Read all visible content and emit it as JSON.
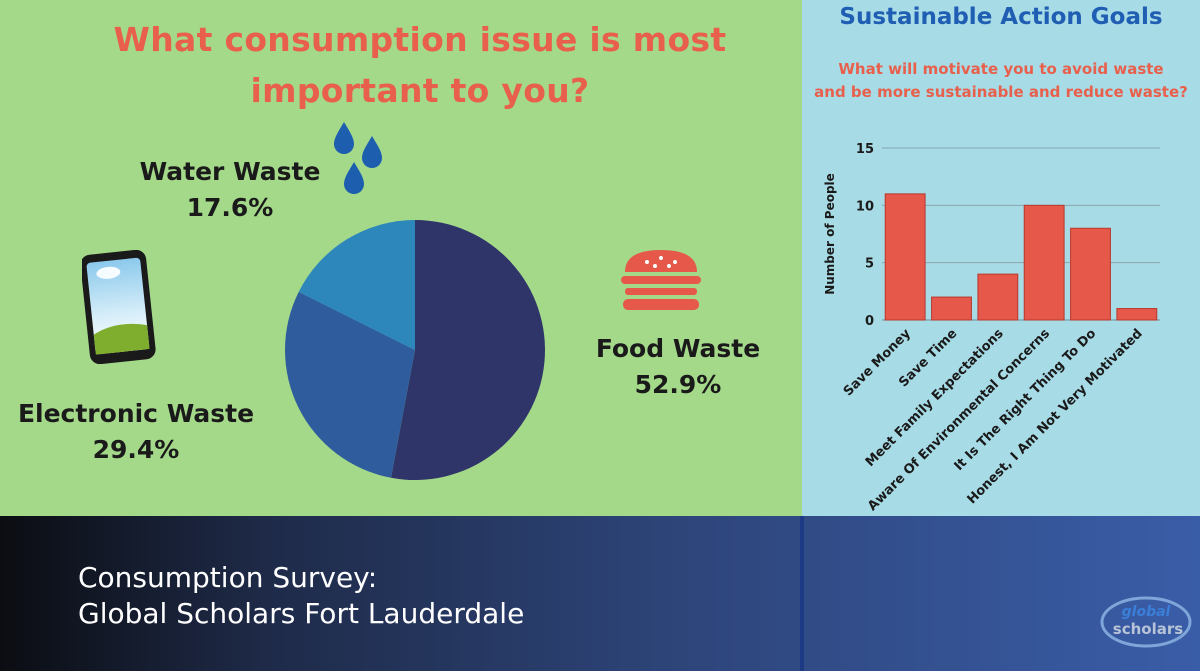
{
  "pie_section": {
    "title_line1": "What consumption issue is most",
    "title_line2": "important to you?"
  },
  "bar_section": {
    "heading": "Sustainable Action Goals",
    "question_line1": "What will motivate you to avoid waste",
    "question_line2": "and be more sustainable and reduce waste?"
  },
  "footer": {
    "title_line1": "Consumption  Survey:",
    "title_line2": "Global Scholars Fort Lauderdale",
    "logo_text_top": "global",
    "logo_text_bottom": "scholars"
  },
  "colors": {
    "food_waste": "#2f3469",
    "electronic_waste": "#2e5c9c",
    "water_waste": "#2d87bb",
    "bar_fill": "#e5584a",
    "accent_title": "#e8604c",
    "heading_blue": "#1f5eb3"
  },
  "chart_data": [
    {
      "type": "pie",
      "title": "What consumption issue is most important to you?",
      "slices": [
        {
          "label": "Food Waste",
          "value": 52.9,
          "display": "52.9%",
          "color": "#2f3469"
        },
        {
          "label": "Electronic Waste",
          "value": 29.4,
          "display": "29.4%",
          "color": "#2e5c9c"
        },
        {
          "label": "Water Waste",
          "value": 17.6,
          "display": "17.6%",
          "color": "#2d87bb"
        }
      ]
    },
    {
      "type": "bar",
      "title": "Sustainable Action Goals",
      "subtitle": "What will motivate you to avoid waste and be more sustainable and reduce waste?",
      "categories": [
        "Save Money",
        "Save Time",
        "Meet Family Expectations",
        "Aware Of Environmental Concerns",
        "It Is The Right Thing To Do",
        "Honest, I Am Not Very Motivated"
      ],
      "values": [
        11,
        2,
        4,
        10,
        8,
        1
      ],
      "ylabel": "Number of People",
      "xlabel": "",
      "ylim": [
        0,
        15
      ],
      "yticks": [
        0,
        5,
        10,
        15
      ],
      "grid": true
    }
  ]
}
